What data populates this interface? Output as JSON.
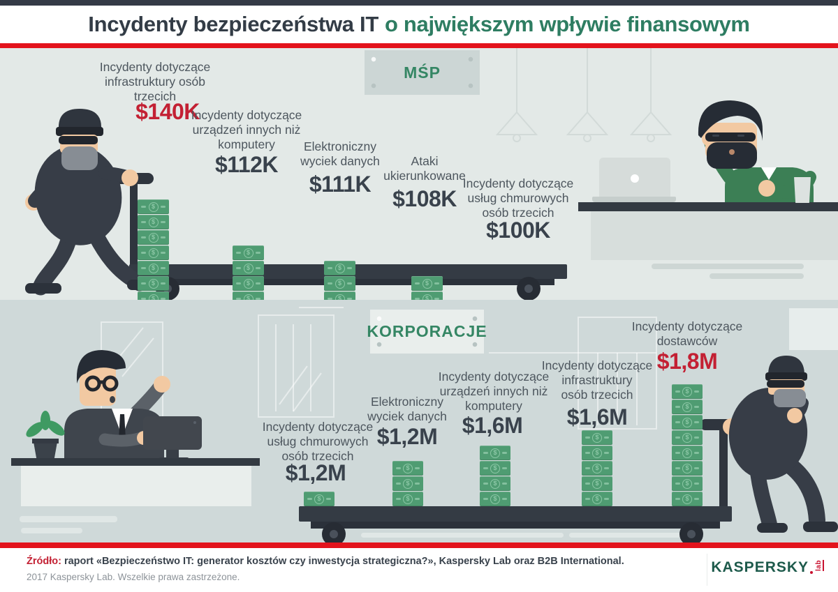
{
  "header": {
    "title_dark": "Incydenty bezpieczeństwa IT",
    "title_accent": "o największym wpływie finansowym"
  },
  "sections": [
    {
      "sign": "MŚP",
      "items": [
        {
          "label": "Incydenty dotyczące\ninfrastruktury osób\ntrzecich",
          "value": "$140K",
          "bills": 8,
          "highlight": true
        },
        {
          "label": "Incydenty dotyczące\nurządzeń innych niż\nkomputery",
          "value": "$112K",
          "bills": 5,
          "highlight": false
        },
        {
          "label": "Elektroniczny\nwyciek danych",
          "value": "$111K",
          "bills": 4,
          "highlight": false
        },
        {
          "label": "Ataki\nukierunkowane",
          "value": "$108K",
          "bills": 3,
          "highlight": false
        },
        {
          "label": "Incydenty dotyczące\nusług chmurowych\nosób trzecich",
          "value": "$100K",
          "bills": 1,
          "highlight": false
        }
      ]
    },
    {
      "sign": "KORPORACJE",
      "items": [
        {
          "label": "Incydenty dotyczące\nusług chmurowych\nosób trzecich",
          "value": "$1,2M",
          "bills": 1,
          "highlight": false
        },
        {
          "label": "Elektroniczny\nwyciek danych",
          "value": "$1,2M",
          "bills": 3,
          "highlight": false
        },
        {
          "label": "Incydenty dotyczące\nurządzeń innych niż\nkomputery",
          "value": "$1,6M",
          "bills": 4,
          "highlight": false
        },
        {
          "label": "Incydenty dotyczące\ninfrastruktury\nosób trzecich",
          "value": "$1,6M",
          "bills": 5,
          "highlight": false
        },
        {
          "label": "Incydenty dotyczące\ndostawców",
          "value": "$1,8M",
          "bills": 8,
          "highlight": true
        }
      ]
    }
  ],
  "footer": {
    "source_prefix": "Źródło:",
    "source_text": "raport «Bezpieczeństwo IT: generator kosztów czy inwestycja strategiczna?», Kaspersky Lab oraz B2B International.",
    "copyright": "2017 Kaspersky Lab. Wszelkie prawa zastrzeżone.",
    "logo": "KASPERSKY",
    "logo_suffix": "lab"
  },
  "colors": {
    "accent_red_text": "#c32033",
    "red_line": "#e3131c",
    "teal_accent": "#2e7d62",
    "bill_green": "#4f9c72",
    "dark_figure": "#373d47",
    "msp_background": "#e3e9e7",
    "korp_background": "#cfd9d9"
  },
  "chart_data": [
    {
      "type": "bar",
      "title": "MŚP",
      "categories": [
        "Incydenty dotyczące infrastruktury osób trzecich",
        "Incydenty dotyczące urządzeń innych niż komputery",
        "Elektroniczny wyciek danych",
        "Ataki ukierunkowane",
        "Incydenty dotyczące usług chmurowych osób trzecich"
      ],
      "values": [
        140,
        112,
        111,
        108,
        100
      ],
      "value_labels": [
        "$140K",
        "$112K",
        "$111K",
        "$108K",
        "$100K"
      ],
      "unit": "thousand USD",
      "highlight_index": 0,
      "legend_position": "none",
      "grid": false
    },
    {
      "type": "bar",
      "title": "KORPORACJE",
      "categories": [
        "Incydenty dotyczące usług chmurowych osób trzecich",
        "Elektroniczny wyciek danych",
        "Incydenty dotyczące urządzeń innych niż komputery",
        "Incydenty dotyczące infrastruktury osób trzecich",
        "Incydenty dotyczące dostawców"
      ],
      "values": [
        1.2,
        1.2,
        1.6,
        1.6,
        1.8
      ],
      "value_labels": [
        "$1,2M",
        "$1,2M",
        "$1,6M",
        "$1,6M",
        "$1,8M"
      ],
      "unit": "million USD",
      "highlight_index": 4,
      "legend_position": "none",
      "grid": false
    }
  ]
}
